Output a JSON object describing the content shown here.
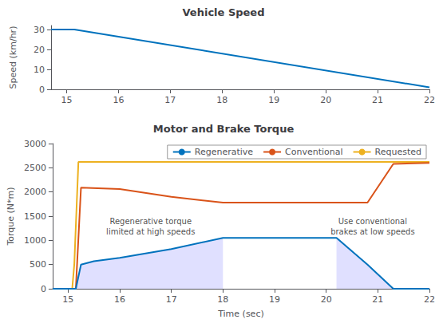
{
  "chart_data": [
    {
      "type": "line",
      "title": "Vehicle Speed",
      "ylabel": "Speed (km/hr)",
      "series": [
        {
          "color": "#0072BD",
          "x": [
            14.7,
            15.15,
            22.0
          ],
          "values": [
            30.0,
            30.0,
            1.0
          ]
        }
      ],
      "xlim": [
        14.7,
        22.0
      ],
      "xticks": [
        15,
        16,
        17,
        18,
        19,
        20,
        21,
        22
      ],
      "ylim": [
        0,
        32
      ],
      "yticks": [
        0,
        10,
        20,
        30
      ],
      "grid": false
    },
    {
      "type": "line",
      "title": "Motor and Brake Torque",
      "xlabel": "Time (sec)",
      "ylabel": "Torque (N*m)",
      "series": [
        {
          "name": "Regenerative",
          "color": "#0072BD",
          "x": [
            14.7,
            15.08,
            15.15,
            15.25,
            15.5,
            16.0,
            17.0,
            18.0,
            19.0,
            20.0,
            20.2,
            20.8,
            21.3,
            22.0
          ],
          "values": [
            0,
            0,
            0,
            500,
            570,
            640,
            820,
            1050,
            1050,
            1050,
            1050,
            500,
            0,
            0
          ]
        },
        {
          "name": "Conventional",
          "color": "#D95319",
          "x": [
            14.7,
            15.08,
            15.15,
            15.25,
            16.0,
            17.0,
            18.0,
            19.0,
            20.0,
            20.2,
            20.8,
            21.3,
            22.0
          ],
          "values": [
            0,
            0,
            0,
            2090,
            2060,
            1900,
            1780,
            1780,
            1780,
            1780,
            1780,
            2580,
            2600
          ]
        },
        {
          "name": "Requested",
          "color": "#EDB120",
          "x": [
            14.7,
            15.08,
            15.12,
            15.2,
            22.0
          ],
          "values": [
            0,
            0,
            500,
            2620,
            2620
          ]
        },
        {
          "type": "area",
          "color": "#CCCCFF",
          "x": [
            15.15,
            15.25,
            15.5,
            16.0,
            17.0,
            18.0
          ],
          "values": [
            0,
            500,
            570,
            640,
            820,
            1050
          ]
        },
        {
          "type": "area",
          "color": "#CCCCFF",
          "x": [
            20.2,
            20.8,
            21.3
          ],
          "values": [
            1050,
            500,
            0
          ]
        }
      ],
      "annotations": [
        {
          "x": 16.6,
          "y": 1280,
          "text": "Regenerative torque\nlimited at high speeds"
        },
        {
          "x": 20.9,
          "y": 1280,
          "text": "Use conventional\nbrakes at low speeds"
        }
      ],
      "xlim": [
        14.7,
        22.0
      ],
      "xticks": [
        15,
        16,
        17,
        18,
        19,
        20,
        21,
        22
      ],
      "ylim": [
        0,
        3000
      ],
      "yticks": [
        0,
        500,
        1000,
        1500,
        2000,
        2500,
        3000
      ],
      "grid": false,
      "legend": "upper right"
    }
  ]
}
